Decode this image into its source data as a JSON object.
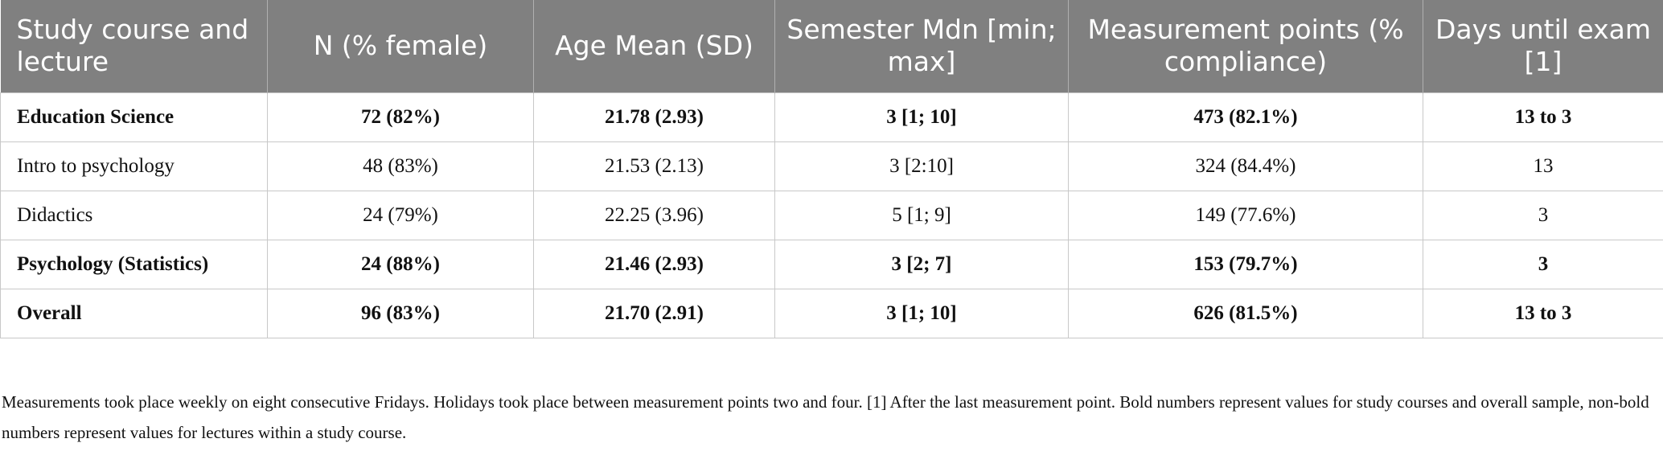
{
  "table": {
    "header": [
      "Study course and lecture",
      "N (% female)",
      "Age Mean (SD)",
      "Semester Mdn [min; max]",
      "Measurement points (% compliance)",
      "Days until exam [1]"
    ],
    "rows": [
      {
        "bold": true,
        "cells": [
          "Education Science",
          "72 (82%)",
          "21.78 (2.93)",
          "3 [1; 10]",
          "473 (82.1%)",
          "13 to 3"
        ]
      },
      {
        "bold": false,
        "cells": [
          "Intro to psychology",
          "48 (83%)",
          "21.53 (2.13)",
          "3 [2:10]",
          "324 (84.4%)",
          "13"
        ]
      },
      {
        "bold": false,
        "cells": [
          "Didactics",
          "24 (79%)",
          "22.25 (3.96)",
          "5 [1; 9]",
          "149 (77.6%)",
          "3"
        ]
      },
      {
        "bold": true,
        "cells": [
          "Psychology (Statistics)",
          "24 (88%)",
          "21.46 (2.93)",
          "3 [2; 7]",
          "153 (79.7%)",
          "3"
        ]
      },
      {
        "bold": true,
        "cells": [
          "Overall",
          "96 (83%)",
          "21.70 (2.91)",
          "3 [1; 10]",
          "626 (81.5%)",
          "13 to 3"
        ]
      }
    ]
  },
  "footnote": "Measurements took place weekly on eight consecutive Fridays. Holidays took place between measurement points two and four. [1] After the last measurement point. Bold numbers represent values for study courses and overall sample, non-bold numbers represent values for lectures within a study course."
}
